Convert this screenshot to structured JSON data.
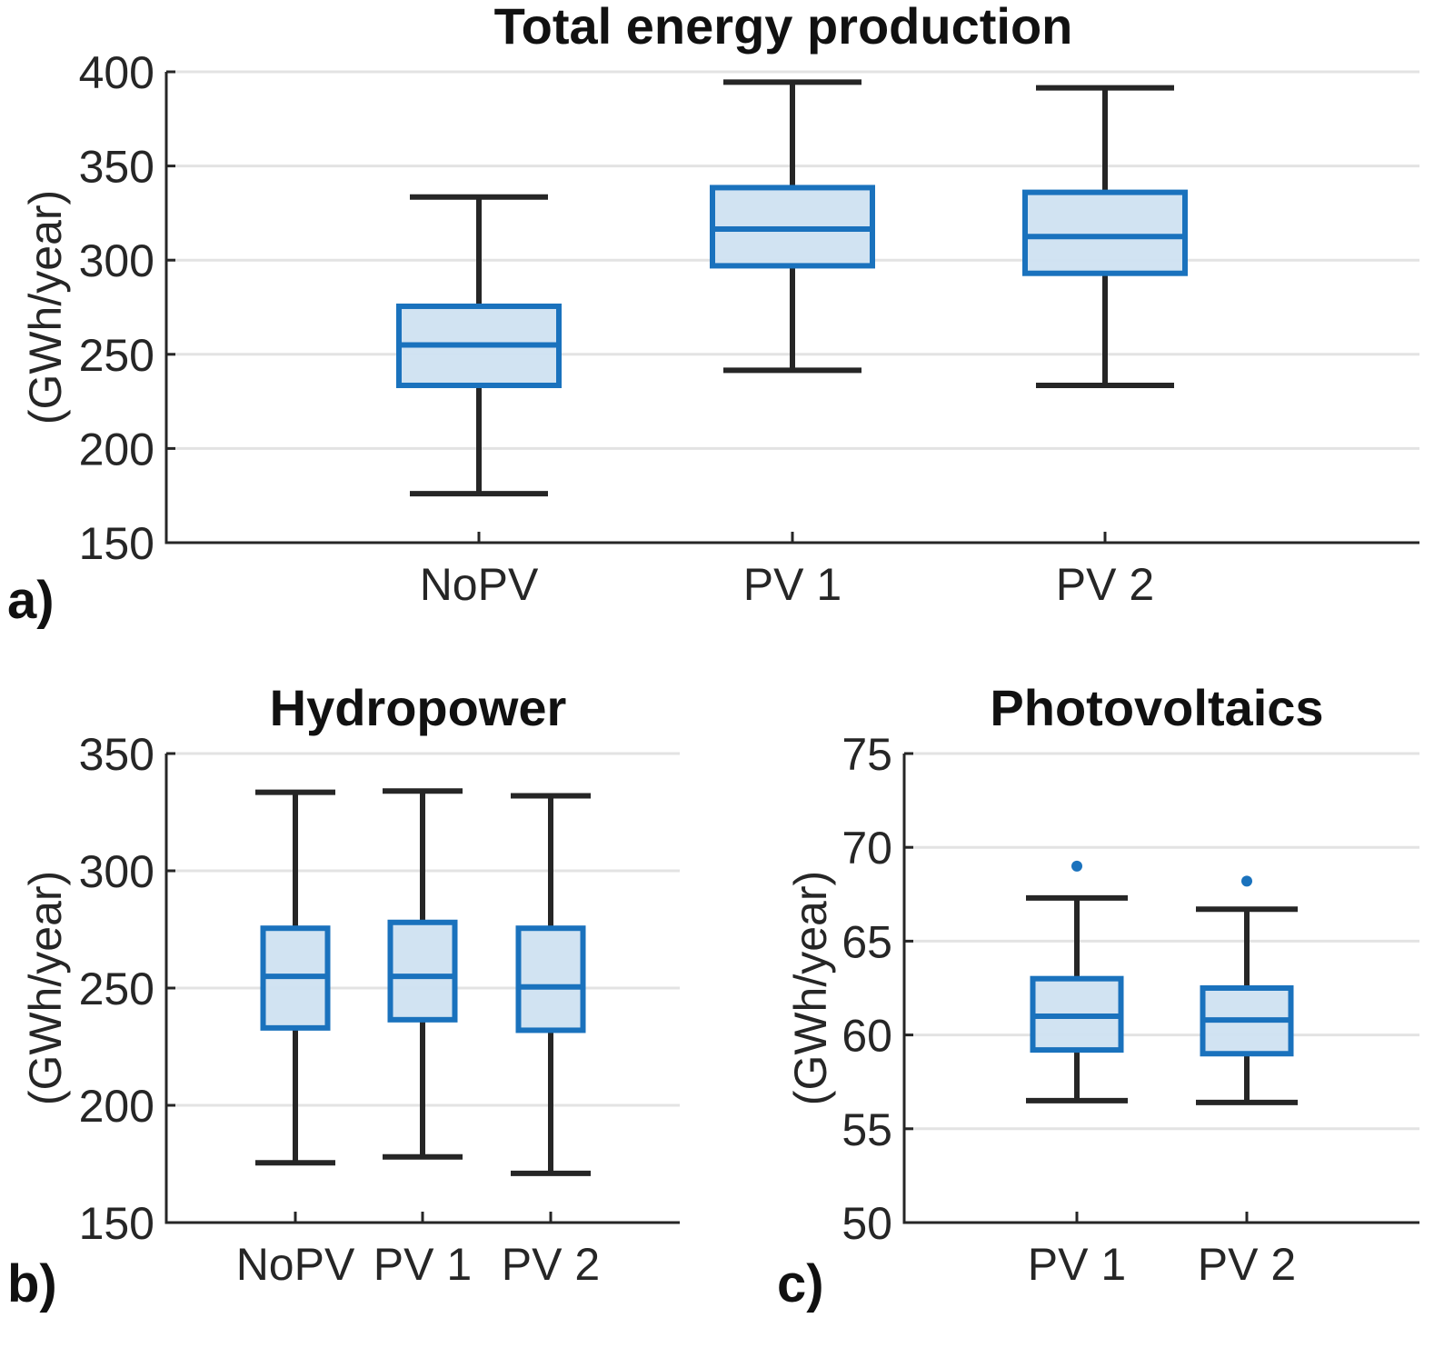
{
  "colors": {
    "box_edge": "#1a72bd",
    "box_fill": "#cfe2f1",
    "whisker": "#262626",
    "grid": "#e3e3e3",
    "axis": "#262626",
    "outlier": "#1a72bd"
  },
  "chart_data": [
    {
      "type": "boxplot",
      "panel_label": "a)",
      "title": "Total energy production",
      "xlabel": "",
      "ylabel": "(GWh/year)",
      "ylim": [
        150,
        400
      ],
      "yticks": [
        150,
        200,
        250,
        300,
        350,
        400
      ],
      "ytick_labels": [
        "150",
        "200",
        "250",
        "300",
        "350",
        "400"
      ],
      "grid": true,
      "categories": [
        "NoPV",
        "PV1",
        "PV2"
      ],
      "category_labels": [
        "NoPV",
        "PV 1",
        "PV 2"
      ],
      "boxes": [
        {
          "name": "NoPV",
          "whisker_low": 176,
          "q1": 233.5,
          "median": 255,
          "q3": 275.5,
          "whisker_high": 333.5,
          "outliers": []
        },
        {
          "name": "PV1",
          "whisker_low": 241.5,
          "q1": 297,
          "median": 316.5,
          "q3": 338.5,
          "whisker_high": 394.5,
          "outliers": []
        },
        {
          "name": "PV2",
          "whisker_low": 233.5,
          "q1": 293,
          "median": 312.5,
          "q3": 336,
          "whisker_high": 391.5,
          "outliers": []
        }
      ]
    },
    {
      "type": "boxplot",
      "panel_label": "b)",
      "title": "Hydropower",
      "xlabel": "",
      "ylabel": "(GWh/year)",
      "ylim": [
        150,
        350
      ],
      "yticks": [
        150,
        200,
        250,
        300,
        350
      ],
      "ytick_labels": [
        "150",
        "200",
        "250",
        "300",
        "350"
      ],
      "grid": true,
      "categories": [
        "NoPV",
        "PV1",
        "PV2"
      ],
      "category_labels": [
        "NoPV",
        "PV 1",
        "PV 2"
      ],
      "boxes": [
        {
          "name": "NoPV",
          "whisker_low": 175.5,
          "q1": 233,
          "median": 255,
          "q3": 275.5,
          "whisker_high": 333.5,
          "outliers": []
        },
        {
          "name": "PV1",
          "whisker_low": 178,
          "q1": 236.5,
          "median": 255,
          "q3": 278,
          "whisker_high": 334,
          "outliers": []
        },
        {
          "name": "PV2",
          "whisker_low": 171,
          "q1": 232,
          "median": 250.5,
          "q3": 275.5,
          "whisker_high": 332,
          "outliers": []
        }
      ]
    },
    {
      "type": "boxplot",
      "panel_label": "c)",
      "title": "Photovoltaics",
      "xlabel": "",
      "ylabel": "(GWh/year)",
      "ylim": [
        50,
        75
      ],
      "yticks": [
        50,
        55,
        60,
        65,
        70,
        75
      ],
      "ytick_labels": [
        "50",
        "55",
        "60",
        "65",
        "70",
        "75"
      ],
      "grid": true,
      "categories": [
        "PV1",
        "PV2"
      ],
      "category_labels": [
        "PV 1",
        "PV 2"
      ],
      "boxes": [
        {
          "name": "PV1",
          "whisker_low": 56.5,
          "q1": 59.2,
          "median": 61.0,
          "q3": 63.0,
          "whisker_high": 67.3,
          "outliers": [
            69.0
          ]
        },
        {
          "name": "PV2",
          "whisker_low": 56.4,
          "q1": 59.0,
          "median": 60.8,
          "q3": 62.5,
          "whisker_high": 66.7,
          "outliers": [
            68.2
          ]
        }
      ]
    }
  ]
}
